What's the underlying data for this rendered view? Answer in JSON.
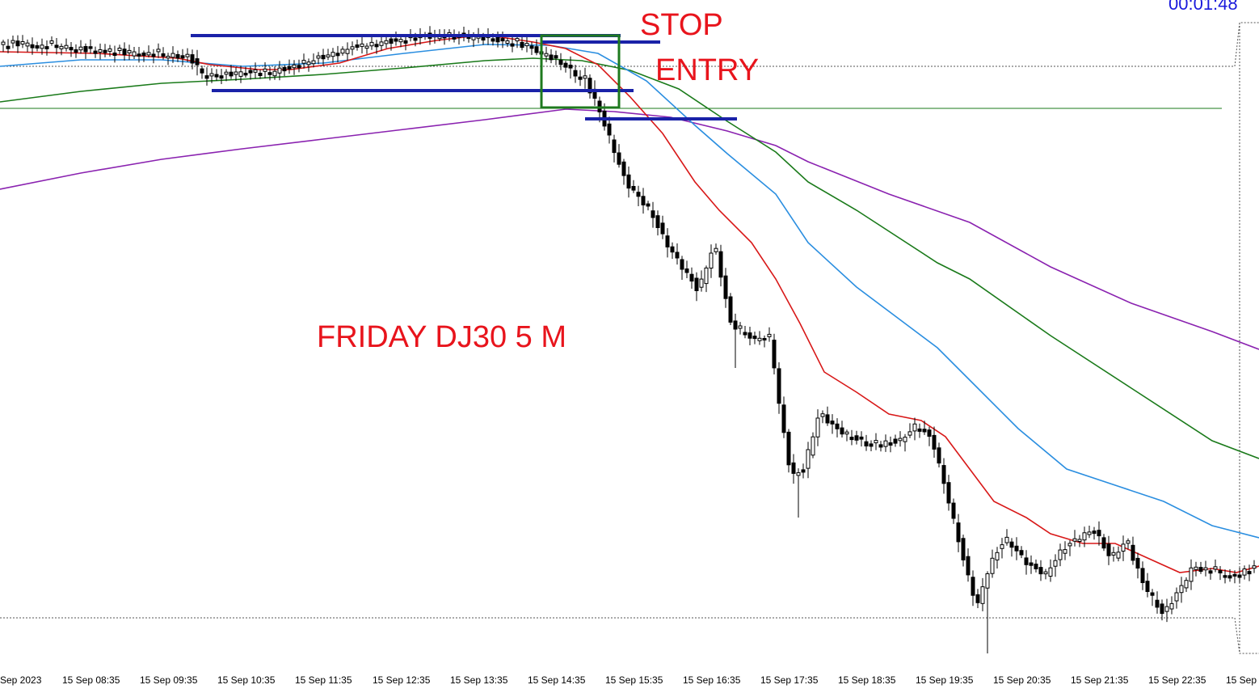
{
  "chart_data": {
    "type": "candlestick",
    "annotations": {
      "stop": "STOP",
      "entry": "ENTRY",
      "title": "FRIDAY   DJ30 5 M"
    },
    "timer": "00:01:48",
    "x_tick_labels": [
      "Sep 2023",
      "15 Sep 08:35",
      "15 Sep 09:35",
      "15 Sep 10:35",
      "15 Sep 11:35",
      "15 Sep 12:35",
      "15 Sep 13:35",
      "15 Sep 14:35",
      "15 Sep 15:35",
      "15 Sep 16:35",
      "15 Sep 17:35",
      "15 Sep 18:35",
      "15 Sep 19:35",
      "15 Sep 20:35",
      "15 Sep 21:35",
      "15 Sep 22:35",
      "15 Sep"
    ],
    "colors": {
      "annotation_text": "#e8141c",
      "timer": "#1a1adc",
      "zone_lines": "#1a22a8",
      "entry_box": "#1e7a1e",
      "ma_fast": "#d81818",
      "ma_mid": "#2a8ee0",
      "ma_slow": "#1a7a1a",
      "ma_longest": "#8a22b0",
      "bull_candle": "#ffffff",
      "bear_candle": "#000000"
    }
  }
}
